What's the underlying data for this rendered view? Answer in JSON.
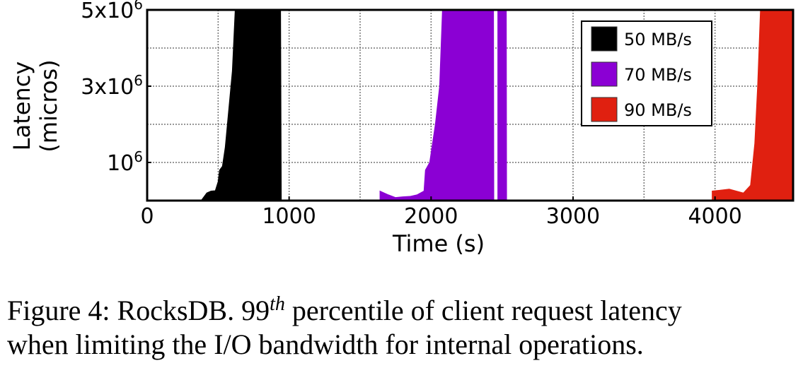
{
  "chart_data": {
    "type": "area",
    "xlabel": "Time (s)",
    "ylabel_lines": [
      "Latency",
      "(micros)"
    ],
    "xlim": [
      0,
      4550
    ],
    "ylim": [
      0,
      5000000
    ],
    "x_ticks": [
      {
        "value": 0,
        "label": "0"
      },
      {
        "value": 1000,
        "label": "1000"
      },
      {
        "value": 2000,
        "label": "2000"
      },
      {
        "value": 3000,
        "label": "3000"
      },
      {
        "value": 4000,
        "label": "4000"
      }
    ],
    "y_ticks": [
      {
        "value": 1000000,
        "mantissa": "10",
        "exp": "6"
      },
      {
        "value": 3000000,
        "mantissa": "3x10",
        "exp": "6"
      },
      {
        "value": 5000000,
        "mantissa": "5x10",
        "exp": "6"
      }
    ],
    "grid": true,
    "legend_position": "top-right",
    "series": [
      {
        "name": "50 MB/s",
        "color": "#000000",
        "points": [
          [
            0,
            0
          ],
          [
            380,
            0
          ],
          [
            420,
            200000
          ],
          [
            450,
            250000
          ],
          [
            480,
            260000
          ],
          [
            500,
            500000
          ],
          [
            510,
            800000
          ],
          [
            530,
            900000
          ],
          [
            550,
            1400000
          ],
          [
            570,
            2200000
          ],
          [
            600,
            3400000
          ],
          [
            620,
            5000000
          ],
          [
            940,
            5000000
          ],
          [
            945,
            0
          ]
        ]
      },
      {
        "name": "70 MB/s",
        "color": "#8b00d4",
        "points": [
          [
            1640,
            250000
          ],
          [
            1700,
            150000
          ],
          [
            1750,
            80000
          ],
          [
            1800,
            100000
          ],
          [
            1850,
            110000
          ],
          [
            1900,
            150000
          ],
          [
            1950,
            250000
          ],
          [
            1960,
            800000
          ],
          [
            1990,
            1000000
          ],
          [
            2030,
            2000000
          ],
          [
            2060,
            3000000
          ],
          [
            2080,
            5000000
          ],
          [
            2440,
            5000000
          ],
          [
            2442,
            0
          ],
          [
            2470,
            0
          ],
          [
            2470,
            5000000
          ],
          [
            2530,
            5000000
          ],
          [
            2532,
            0
          ]
        ]
      },
      {
        "name": "90 MB/s",
        "color": "#e02010",
        "points": [
          [
            3980,
            250000
          ],
          [
            4100,
            300000
          ],
          [
            4200,
            200000
          ],
          [
            4250,
            400000
          ],
          [
            4280,
            1500000
          ],
          [
            4300,
            3000000
          ],
          [
            4320,
            5000000
          ],
          [
            4550,
            5000000
          ],
          [
            4550,
            0
          ]
        ]
      }
    ]
  },
  "caption": {
    "prefix": "Figure 4: RocksDB. 99",
    "superscript": "th",
    "line1_rest": " percentile of client request latency",
    "line2": "when limiting the I/O bandwidth for internal operations."
  }
}
